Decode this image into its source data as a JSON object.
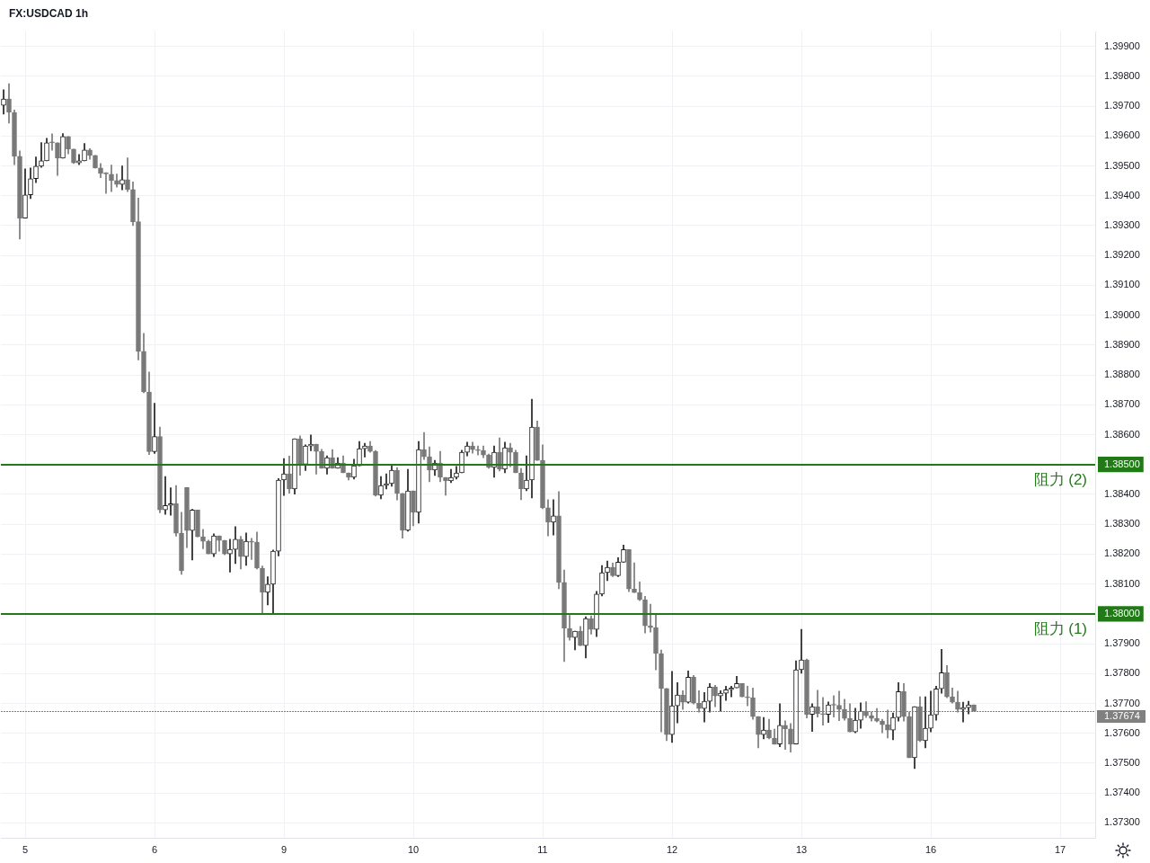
{
  "chart_data": {
    "type": "candlestick",
    "title": "FX:USDCAD 1h",
    "categories": [
      null,
      null,
      null,
      null,
      "5",
      null,
      null,
      null,
      null,
      null,
      null,
      null,
      null,
      null,
      null,
      null,
      null,
      null,
      null,
      null,
      null,
      null,
      null,
      null,
      null,
      null,
      null,
      null,
      "6",
      null,
      null,
      null,
      null,
      null,
      null,
      null,
      null,
      null,
      null,
      null,
      null,
      null,
      null,
      null,
      null,
      null,
      null,
      null,
      null,
      null,
      null,
      null,
      "9",
      null,
      null,
      null,
      null,
      null,
      null,
      null,
      null,
      null,
      null,
      null,
      null,
      null,
      null,
      null,
      null,
      null,
      null,
      null,
      null,
      null,
      null,
      null,
      "10",
      null,
      null,
      null,
      null,
      null,
      null,
      null,
      null,
      null,
      null,
      null,
      null,
      null,
      null,
      null,
      null,
      null,
      null,
      null,
      null,
      null,
      null,
      null,
      "11",
      null,
      null,
      null,
      null,
      null,
      null,
      null,
      null,
      null,
      null,
      null,
      null,
      null,
      null,
      null,
      null,
      null,
      null,
      null,
      null,
      null,
      null,
      null,
      "12",
      null,
      null,
      null,
      null,
      null,
      null,
      null,
      null,
      null,
      null,
      null,
      null,
      null,
      null,
      null,
      null,
      null,
      null,
      null,
      null,
      null,
      null,
      null,
      "13",
      null,
      null,
      null,
      null,
      null,
      null,
      null,
      null,
      null,
      null,
      null,
      null,
      null,
      null,
      null,
      null,
      null,
      null,
      null,
      null,
      null,
      null,
      null,
      "16",
      null,
      null,
      null,
      null,
      null,
      null,
      null,
      null,
      null,
      null,
      null,
      null,
      null,
      null,
      null,
      null,
      null,
      null,
      null,
      null,
      null,
      null,
      null,
      "17",
      null,
      null,
      null,
      null,
      null,
      null
    ],
    "ohlc": [
      [
        1.39703,
        1.39755,
        1.39673,
        1.39724
      ],
      [
        1.39724,
        1.39775,
        1.39643,
        1.39679
      ],
      [
        1.39679,
        1.39687,
        1.39504,
        1.39532
      ],
      [
        1.39532,
        1.3955,
        1.39255,
        1.39325
      ],
      [
        1.39325,
        1.3949,
        1.39325,
        1.39403
      ],
      [
        1.39403,
        1.39493,
        1.3939,
        1.39457
      ],
      [
        1.39457,
        1.3953,
        1.39444,
        1.39499
      ],
      [
        1.39499,
        1.39578,
        1.39495,
        1.39517
      ],
      [
        1.39517,
        1.39592,
        1.39517,
        1.39577
      ],
      [
        1.39577,
        1.39607,
        1.39552,
        1.39577
      ],
      [
        1.39577,
        1.39577,
        1.39468,
        1.39526
      ],
      [
        1.39526,
        1.39608,
        1.39526,
        1.39598
      ],
      [
        1.39598,
        1.39598,
        1.3954,
        1.39556
      ],
      [
        1.39556,
        1.39556,
        1.39508,
        1.3951
      ],
      [
        1.3951,
        1.39538,
        1.39504,
        1.39517
      ],
      [
        1.39517,
        1.39575,
        1.39517,
        1.39553
      ],
      [
        1.39553,
        1.39558,
        1.39522,
        1.39535
      ],
      [
        1.39535,
        1.39535,
        1.39493,
        1.39493
      ],
      [
        1.39493,
        1.39508,
        1.3946,
        1.39475
      ],
      [
        1.39477,
        1.39477,
        1.39408,
        1.39473
      ],
      [
        1.39472,
        1.39503,
        1.39414,
        1.39451
      ],
      [
        1.39451,
        1.39473,
        1.39429,
        1.39438
      ],
      [
        1.39438,
        1.395,
        1.3942,
        1.39454
      ],
      [
        1.39454,
        1.39527,
        1.39414,
        1.39421
      ],
      [
        1.39421,
        1.39446,
        1.393,
        1.39313
      ],
      [
        1.39313,
        1.39392,
        1.3885,
        1.38879
      ],
      [
        1.38879,
        1.38939,
        1.3874,
        1.38743
      ],
      [
        1.38743,
        1.3881,
        1.38533,
        1.38543
      ],
      [
        1.38543,
        1.38705,
        1.38537,
        1.38594
      ],
      [
        1.38594,
        1.38625,
        1.38338,
        1.38348
      ],
      [
        1.38348,
        1.3846,
        1.38333,
        1.38363
      ],
      [
        1.38363,
        1.38422,
        1.3833,
        1.38369
      ],
      [
        1.38369,
        1.3843,
        1.3826,
        1.3827
      ],
      [
        1.3827,
        1.3834,
        1.38132,
        1.38144
      ],
      [
        1.38423,
        1.38423,
        1.38222,
        1.38279
      ],
      [
        1.38279,
        1.3835,
        1.3818,
        1.38348
      ],
      [
        1.38348,
        1.38348,
        1.38258,
        1.38258
      ],
      [
        1.38258,
        1.38283,
        1.38218,
        1.38243
      ],
      [
        1.38243,
        1.38247,
        1.38201,
        1.38201
      ],
      [
        1.38201,
        1.38268,
        1.38192,
        1.38261
      ],
      [
        1.38261,
        1.38261,
        1.3821,
        1.38246
      ],
      [
        1.38246,
        1.38246,
        1.38198,
        1.38201
      ],
      [
        1.38201,
        1.3825,
        1.3814,
        1.38216
      ],
      [
        1.38216,
        1.38292,
        1.38168,
        1.3825
      ],
      [
        1.3825,
        1.3826,
        1.3815,
        1.38192
      ],
      [
        1.38192,
        1.38271,
        1.38162,
        1.38243
      ],
      [
        1.38242,
        1.38253,
        1.38182,
        1.3824
      ],
      [
        1.3824,
        1.38274,
        1.3815,
        1.38153
      ],
      [
        1.38153,
        1.3816,
        1.38002,
        1.38072
      ],
      [
        1.38072,
        1.38124,
        1.3803,
        1.38099
      ],
      [
        1.38099,
        1.38214,
        1.38002,
        1.3821
      ],
      [
        1.3821,
        1.38453,
        1.38194,
        1.38448
      ],
      [
        1.38448,
        1.3852,
        1.38396,
        1.38469
      ],
      [
        1.38469,
        1.38528,
        1.38404,
        1.38418
      ],
      [
        1.38418,
        1.38586,
        1.38401,
        1.38586
      ],
      [
        1.38586,
        1.38596,
        1.38464,
        1.38501
      ],
      [
        1.38501,
        1.38566,
        1.3848,
        1.38562
      ],
      [
        1.38562,
        1.38599,
        1.38546,
        1.38568
      ],
      [
        1.38568,
        1.38568,
        1.38468,
        1.38544
      ],
      [
        1.38544,
        1.38551,
        1.38487,
        1.38487
      ],
      [
        1.38487,
        1.38529,
        1.38468,
        1.38523
      ],
      [
        1.38523,
        1.3855,
        1.38487,
        1.38487
      ],
      [
        1.38487,
        1.38523,
        1.38487,
        1.38505
      ],
      [
        1.38505,
        1.38529,
        1.38472,
        1.38472
      ],
      [
        1.38472,
        1.38472,
        1.38448,
        1.38457
      ],
      [
        1.38457,
        1.38518,
        1.38451,
        1.38496
      ],
      [
        1.38496,
        1.38577,
        1.38496,
        1.38553
      ],
      [
        1.38553,
        1.38571,
        1.38525,
        1.38562
      ],
      [
        1.38562,
        1.38577,
        1.38541,
        1.38544
      ],
      [
        1.38544,
        1.38547,
        1.38394,
        1.38397
      ],
      [
        1.38397,
        1.3846,
        1.38385,
        1.3843
      ],
      [
        1.3843,
        1.38469,
        1.38418,
        1.38436
      ],
      [
        1.38436,
        1.38497,
        1.38427,
        1.38481
      ],
      [
        1.38481,
        1.3849,
        1.38381,
        1.38403
      ],
      [
        1.38403,
        1.38403,
        1.38253,
        1.3828
      ],
      [
        1.3828,
        1.38484,
        1.38277,
        1.38412
      ],
      [
        1.38412,
        1.38412,
        1.38295,
        1.3834
      ],
      [
        1.3834,
        1.38577,
        1.38304,
        1.3855
      ],
      [
        1.3855,
        1.38607,
        1.38517,
        1.38526
      ],
      [
        1.38526,
        1.38559,
        1.38442,
        1.38481
      ],
      [
        1.38481,
        1.38514,
        1.38463,
        1.38505
      ],
      [
        1.38505,
        1.38544,
        1.38442,
        1.38457
      ],
      [
        1.38457,
        1.38457,
        1.38397,
        1.38445
      ],
      [
        1.38445,
        1.38484,
        1.38439,
        1.38457
      ],
      [
        1.38457,
        1.38494,
        1.38451,
        1.38472
      ],
      [
        1.38472,
        1.38548,
        1.38472,
        1.38541
      ],
      [
        1.38541,
        1.38575,
        1.38529,
        1.38562
      ],
      [
        1.38562,
        1.38575,
        1.38538,
        1.3855
      ],
      [
        1.3855,
        1.38562,
        1.38532,
        1.38547
      ],
      [
        1.38547,
        1.38562,
        1.38523,
        1.38532
      ],
      [
        1.38532,
        1.38535,
        1.38487,
        1.3849
      ],
      [
        1.3849,
        1.38562,
        1.38457,
        1.38541
      ],
      [
        1.38541,
        1.38589,
        1.38478,
        1.38484
      ],
      [
        1.38484,
        1.38575,
        1.38472,
        1.38556
      ],
      [
        1.38556,
        1.38571,
        1.38493,
        1.38541
      ],
      [
        1.38541,
        1.38548,
        1.38472,
        1.38472
      ],
      [
        1.38472,
        1.38487,
        1.38382,
        1.38418
      ],
      [
        1.38418,
        1.38529,
        1.38412,
        1.38448
      ],
      [
        1.38448,
        1.38719,
        1.38388,
        1.38625
      ],
      [
        1.38625,
        1.38646,
        1.38514,
        1.38514
      ],
      [
        1.38514,
        1.38566,
        1.38352,
        1.38355
      ],
      [
        1.38355,
        1.38382,
        1.38261,
        1.38307
      ],
      [
        1.38307,
        1.38382,
        1.38264,
        1.38328
      ],
      [
        1.38328,
        1.38409,
        1.38084,
        1.38105
      ],
      [
        1.38105,
        1.38147,
        1.3784,
        1.37952
      ],
      [
        1.37951,
        1.37995,
        1.37912,
        1.37921
      ],
      [
        1.37921,
        1.37942,
        1.37879,
        1.37942
      ],
      [
        1.37942,
        1.37958,
        1.37894,
        1.37894
      ],
      [
        1.37894,
        1.3799,
        1.37852,
        1.37984
      ],
      [
        1.37984,
        1.37993,
        1.37932,
        1.37948
      ],
      [
        1.37948,
        1.38075,
        1.37924,
        1.38066
      ],
      [
        1.38066,
        1.38162,
        1.3806,
        1.38138
      ],
      [
        1.38138,
        1.38177,
        1.38111,
        1.38156
      ],
      [
        1.38156,
        1.3817,
        1.38125,
        1.38128
      ],
      [
        1.38128,
        1.38188,
        1.38125,
        1.38173
      ],
      [
        1.38173,
        1.3823,
        1.38173,
        1.38215
      ],
      [
        1.38215,
        1.38215,
        1.38074,
        1.38083
      ],
      [
        1.38083,
        1.38171,
        1.38071,
        1.38071
      ],
      [
        1.38071,
        1.38107,
        1.38044,
        1.38047
      ],
      [
        1.38047,
        1.38059,
        1.37936,
        1.3796
      ],
      [
        1.3796,
        1.38032,
        1.37939,
        1.37954
      ],
      [
        1.37954,
        1.37996,
        1.37812,
        1.37867
      ],
      [
        1.37867,
        1.37879,
        1.37605,
        1.3775
      ],
      [
        1.3775,
        1.3775,
        1.37575,
        1.37596
      ],
      [
        1.37596,
        1.37807,
        1.37569,
        1.37692
      ],
      [
        1.37692,
        1.3777,
        1.37635,
        1.37728
      ],
      [
        1.37728,
        1.37743,
        1.3768,
        1.37704
      ],
      [
        1.37704,
        1.37809,
        1.37701,
        1.37788
      ],
      [
        1.37788,
        1.37794,
        1.37698,
        1.37701
      ],
      [
        1.37701,
        1.37743,
        1.37671,
        1.37683
      ],
      [
        1.37683,
        1.37737,
        1.37638,
        1.37707
      ],
      [
        1.37707,
        1.37767,
        1.37671,
        1.37755
      ],
      [
        1.37755,
        1.37761,
        1.37689,
        1.37725
      ],
      [
        1.37725,
        1.37743,
        1.37674,
        1.37734
      ],
      [
        1.37734,
        1.37758,
        1.3771,
        1.37746
      ],
      [
        1.37746,
        1.37758,
        1.37722,
        1.37752
      ],
      [
        1.37752,
        1.37791,
        1.37752,
        1.37767
      ],
      [
        1.37767,
        1.37767,
        1.37722,
        1.37722
      ],
      [
        1.37722,
        1.37758,
        1.37692,
        1.37719
      ],
      [
        1.37719,
        1.37752,
        1.37647,
        1.37656
      ],
      [
        1.37656,
        1.37656,
        1.37551,
        1.37596
      ],
      [
        1.37596,
        1.37653,
        1.37581,
        1.37611
      ],
      [
        1.37611,
        1.37647,
        1.37581,
        1.37584
      ],
      [
        1.37584,
        1.37614,
        1.37563,
        1.37563
      ],
      [
        1.37564,
        1.37699,
        1.37555,
        1.37627
      ],
      [
        1.37627,
        1.37642,
        1.37546,
        1.37615
      ],
      [
        1.37615,
        1.37633,
        1.37537,
        1.37564
      ],
      [
        1.37564,
        1.37843,
        1.37564,
        1.37813
      ],
      [
        1.37813,
        1.37948,
        1.37801,
        1.37846
      ],
      [
        1.37846,
        1.37849,
        1.37651,
        1.37663
      ],
      [
        1.37663,
        1.37699,
        1.37606,
        1.37689
      ],
      [
        1.37689,
        1.37744,
        1.37654,
        1.37666
      ],
      [
        1.37666,
        1.3772,
        1.37627,
        1.37663
      ],
      [
        1.37663,
        1.37705,
        1.37636,
        1.37695
      ],
      [
        1.37695,
        1.37726,
        1.37654,
        1.37694
      ],
      [
        1.37694,
        1.37741,
        1.37642,
        1.3768
      ],
      [
        1.3768,
        1.37714,
        1.37644,
        1.3765
      ],
      [
        1.3765,
        1.37699,
        1.37605,
        1.37605
      ],
      [
        1.37605,
        1.37684,
        1.37602,
        1.37644
      ],
      [
        1.37644,
        1.37702,
        1.37617,
        1.37674
      ],
      [
        1.37674,
        1.37706,
        1.37653,
        1.37659
      ],
      [
        1.37659,
        1.37671,
        1.37641,
        1.3765
      ],
      [
        1.3765,
        1.37683,
        1.37638,
        1.37641
      ],
      [
        1.37641,
        1.37647,
        1.37602,
        1.37629
      ],
      [
        1.37629,
        1.37678,
        1.37584,
        1.37611
      ],
      [
        1.37611,
        1.37668,
        1.37578,
        1.37653
      ],
      [
        1.37653,
        1.3777,
        1.37641,
        1.3774
      ],
      [
        1.3774,
        1.37767,
        1.37641,
        1.37656
      ],
      [
        1.37656,
        1.37671,
        1.37518,
        1.37518
      ],
      [
        1.37518,
        1.37689,
        1.37482,
        1.37689
      ],
      [
        1.37689,
        1.37722,
        1.37572,
        1.37575
      ],
      [
        1.37575,
        1.37722,
        1.37551,
        1.37617
      ],
      [
        1.37617,
        1.37741,
        1.37605,
        1.37662
      ],
      [
        1.37662,
        1.37758,
        1.37644,
        1.37749
      ],
      [
        1.37749,
        1.37881,
        1.37734,
        1.37803
      ],
      [
        1.37803,
        1.37827,
        1.37719,
        1.37722
      ],
      [
        1.37722,
        1.37752,
        1.37701,
        1.37704
      ],
      [
        1.37704,
        1.37741,
        1.37671,
        1.3768
      ],
      [
        1.3768,
        1.37704,
        1.37638,
        1.37686
      ],
      [
        1.37686,
        1.37707,
        1.37665,
        1.37695
      ],
      [
        1.37695,
        1.37695,
        1.37674,
        1.37674
      ],
      null,
      null,
      null,
      null,
      null,
      null,
      null,
      null,
      null,
      null,
      null,
      null,
      null,
      null,
      null,
      null,
      null,
      null,
      null,
      null,
      null,
      null
    ],
    "colors": [
      "#1e1e1e",
      "#787878",
      "#787878",
      "#787878",
      "#1e1e1e",
      "#1e1e1e",
      "#1e1e1e",
      "#1e1e1e",
      "#1e1e1e",
      "#787878",
      "#787878",
      "#1e1e1e",
      "#787878",
      "#787878",
      "#1e1e1e",
      "#1e1e1e",
      "#787878",
      "#787878",
      "#787878",
      "#787878",
      "#787878",
      "#787878",
      "#1e1e1e",
      "#787878",
      "#787878",
      "#787878",
      "#787878",
      "#787878",
      "#1e1e1e",
      "#787878",
      "#1e1e1e",
      "#1e1e1e",
      "#787878",
      "#787878",
      "#787878",
      "#1e1e1e",
      "#787878",
      "#787878",
      "#787878",
      "#1e1e1e",
      "#787878",
      "#787878",
      "#1e1e1e",
      "#1e1e1e",
      "#787878",
      "#1e1e1e",
      "#787878",
      "#787878",
      "#787878",
      "#1e1e1e",
      "#1e1e1e",
      "#1e1e1e",
      "#1e1e1e",
      "#787878",
      "#1e1e1e",
      "#787878",
      "#1e1e1e",
      "#1e1e1e",
      "#787878",
      "#787878",
      "#1e1e1e",
      "#787878",
      "#1e1e1e",
      "#787878",
      "#787878",
      "#1e1e1e",
      "#1e1e1e",
      "#1e1e1e",
      "#787878",
      "#787878",
      "#1e1e1e",
      "#1e1e1e",
      "#1e1e1e",
      "#787878",
      "#787878",
      "#1e1e1e",
      "#787878",
      "#1e1e1e",
      "#787878",
      "#787878",
      "#1e1e1e",
      "#787878",
      "#787878",
      "#1e1e1e",
      "#1e1e1e",
      "#1e1e1e",
      "#1e1e1e",
      "#787878",
      "#787878",
      "#787878",
      "#787878",
      "#1e1e1e",
      "#787878",
      "#1e1e1e",
      "#787878",
      "#787878",
      "#787878",
      "#1e1e1e",
      "#1e1e1e",
      "#787878",
      "#787878",
      "#787878",
      "#1e1e1e",
      "#787878",
      "#787878",
      "#787878",
      "#1e1e1e",
      "#787878",
      "#1e1e1e",
      "#787878",
      "#1e1e1e",
      "#1e1e1e",
      "#1e1e1e",
      "#787878",
      "#1e1e1e",
      "#1e1e1e",
      "#787878",
      "#787878",
      "#787878",
      "#787878",
      "#787878",
      "#787878",
      "#787878",
      "#787878",
      "#1e1e1e",
      "#1e1e1e",
      "#787878",
      "#1e1e1e",
      "#787878",
      "#787878",
      "#1e1e1e",
      "#1e1e1e",
      "#787878",
      "#1e1e1e",
      "#1e1e1e",
      "#1e1e1e",
      "#1e1e1e",
      "#787878",
      "#787878",
      "#787878",
      "#787878",
      "#1e1e1e",
      "#787878",
      "#787878",
      "#1e1e1e",
      "#787878",
      "#787878",
      "#1e1e1e",
      "#1e1e1e",
      "#787878",
      "#1e1e1e",
      "#787878",
      "#787878",
      "#1e1e1e",
      "#787878",
      "#787878",
      "#787878",
      "#787878",
      "#1e1e1e",
      "#1e1e1e",
      "#787878",
      "#787878",
      "#787878",
      "#787878",
      "#787878",
      "#1e1e1e",
      "#1e1e1e",
      "#787878",
      "#787878",
      "#1e1e1e",
      "#787878",
      "#1e1e1e",
      "#1e1e1e",
      "#1e1e1e",
      "#1e1e1e",
      "#787878",
      "#787878",
      "#787878",
      "#1e1e1e",
      "#1e1e1e",
      "#787878",
      null,
      null,
      null,
      null,
      null,
      null,
      null,
      null,
      null,
      null,
      null,
      null,
      null,
      null,
      null,
      null,
      null,
      null,
      null,
      null,
      null,
      null
    ],
    "ylim": [
      1.3725,
      1.3995
    ],
    "yticks": [
      {
        "value": 1.373,
        "label": "1.37300"
      },
      {
        "value": 1.374,
        "label": "1.37400"
      },
      {
        "value": 1.375,
        "label": "1.37500"
      },
      {
        "value": 1.376,
        "label": "1.37600"
      },
      {
        "value": 1.377,
        "label": "1.37700"
      },
      {
        "value": 1.378,
        "label": "1.37800"
      },
      {
        "value": 1.379,
        "label": "1.37900"
      },
      {
        "value": 1.38,
        "label": "1.38000"
      },
      {
        "value": 1.381,
        "label": "1.38100"
      },
      {
        "value": 1.382,
        "label": "1.38200"
      },
      {
        "value": 1.383,
        "label": "1.38300"
      },
      {
        "value": 1.384,
        "label": "1.38400"
      },
      {
        "value": 1.385,
        "label": "1.38500"
      },
      {
        "value": 1.386,
        "label": "1.38600"
      },
      {
        "value": 1.387,
        "label": "1.38700"
      },
      {
        "value": 1.388,
        "label": "1.38800"
      },
      {
        "value": 1.389,
        "label": "1.38900"
      },
      {
        "value": 1.39,
        "label": "1.39000"
      },
      {
        "value": 1.391,
        "label": "1.39100"
      },
      {
        "value": 1.392,
        "label": "1.39200"
      },
      {
        "value": 1.393,
        "label": "1.39300"
      },
      {
        "value": 1.394,
        "label": "1.39400"
      },
      {
        "value": 1.395,
        "label": "1.39500"
      },
      {
        "value": 1.396,
        "label": "1.39600"
      },
      {
        "value": 1.397,
        "label": "1.39700"
      },
      {
        "value": 1.398,
        "label": "1.39800"
      },
      {
        "value": 1.399,
        "label": "1.39900"
      }
    ],
    "grid": true,
    "ref_lines": [
      {
        "axis": "y",
        "value": 1.385,
        "label": "阻力 (2)",
        "color": "#217a17",
        "line_style": "solid"
      },
      {
        "axis": "y",
        "value": 1.38,
        "label": "阻力 (1)",
        "color": "#217a17",
        "line_style": "solid"
      },
      {
        "axis": "y",
        "value": 1.37674,
        "label": "1.37674",
        "color": "#808080",
        "line_style": "dotted"
      }
    ]
  }
}
